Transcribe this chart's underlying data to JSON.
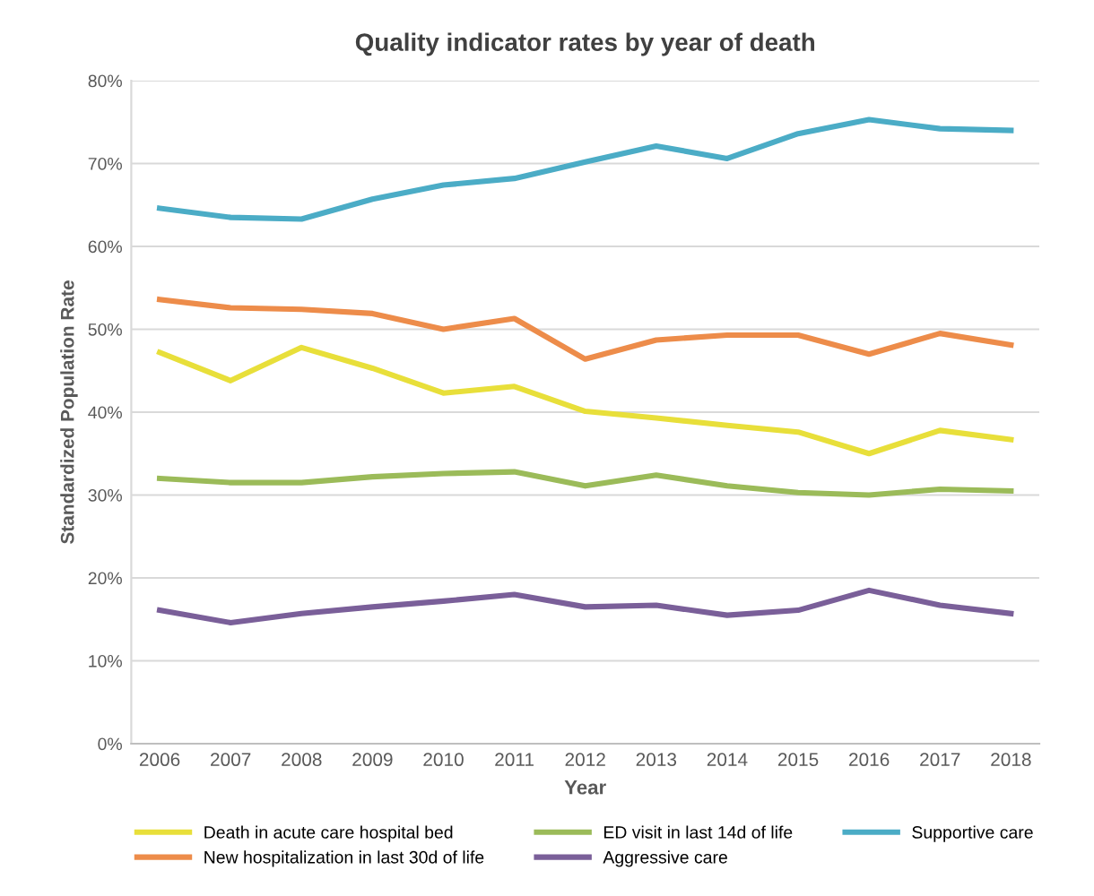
{
  "chart_data": {
    "type": "line",
    "title": "Quality indicator rates by year of death",
    "xlabel": "Year",
    "ylabel": "Standardized Population Rate",
    "categories": [
      "2006",
      "2007",
      "2008",
      "2009",
      "2010",
      "2011",
      "2012",
      "2013",
      "2014",
      "2015",
      "2016",
      "2017",
      "2018"
    ],
    "series": [
      {
        "name": "Death in acute care hospital bed",
        "color": "#e8df3a",
        "values": [
          47.2,
          43.8,
          47.8,
          45.3,
          42.3,
          43.1,
          40.1,
          39.3,
          38.4,
          37.6,
          35.0,
          37.8,
          36.7
        ]
      },
      {
        "name": "New hospitalization in last 30d of life",
        "color": "#ed8c4a",
        "values": [
          53.6,
          52.6,
          52.4,
          51.9,
          50.0,
          51.3,
          46.4,
          48.7,
          49.3,
          49.3,
          47.0,
          49.5,
          48.1
        ]
      },
      {
        "name": "ED visit in last 14d of life",
        "color": "#9bbb59",
        "values": [
          32.0,
          31.5,
          31.5,
          32.2,
          32.6,
          32.8,
          31.1,
          32.4,
          31.1,
          30.3,
          30.0,
          30.7,
          30.5
        ]
      },
      {
        "name": "Aggressive care",
        "color": "#7a5f99",
        "values": [
          16.1,
          14.6,
          15.7,
          16.5,
          17.2,
          18.0,
          16.5,
          16.7,
          15.5,
          16.1,
          18.5,
          16.7,
          15.7
        ]
      },
      {
        "name": "Supportive care",
        "color": "#4bacc6",
        "values": [
          64.6,
          63.5,
          63.3,
          65.7,
          67.4,
          68.2,
          70.2,
          72.1,
          70.6,
          73.6,
          75.3,
          74.2,
          74.0
        ]
      }
    ],
    "ylim": [
      0,
      80
    ],
    "yticks": [
      {
        "value": 0,
        "label": "0%"
      },
      {
        "value": 10,
        "label": "10%"
      },
      {
        "value": 20,
        "label": "20%"
      },
      {
        "value": 30,
        "label": "30%"
      },
      {
        "value": 40,
        "label": "40%"
      },
      {
        "value": 50,
        "label": "50%"
      },
      {
        "value": 60,
        "label": "60%"
      },
      {
        "value": 70,
        "label": "70%"
      },
      {
        "value": 80,
        "label": "80%"
      }
    ],
    "grid": "y",
    "legend": "bottom",
    "marker": "none",
    "line_style": "solid"
  }
}
